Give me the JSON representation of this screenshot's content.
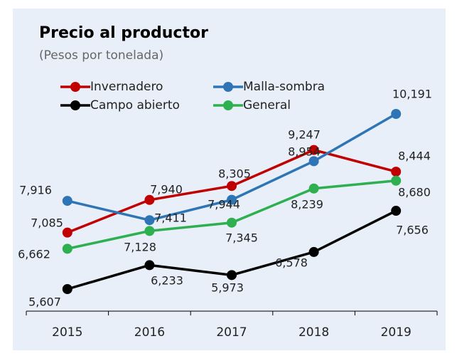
{
  "chart_data": {
    "type": "line",
    "title": "Precio al productor",
    "subtitle": "(Pesos por tonelada)",
    "categories": [
      "2015",
      "2016",
      "2017",
      "2018",
      "2019"
    ],
    "series": [
      {
        "name": "Invernadero",
        "color": "#c00000",
        "values": [
          7085,
          7940,
          8305,
          9247,
          8680
        ],
        "value_labels": [
          "7,085",
          "7,940",
          "8,305",
          "9,247",
          "8,680"
        ]
      },
      {
        "name": "Malla-sombra",
        "color": "#2e75b6",
        "values": [
          7916,
          7411,
          7944,
          8954,
          10191
        ],
        "value_labels": [
          "7,916",
          "7,411",
          "7,944",
          "8,954",
          "10,191"
        ]
      },
      {
        "name": "Campo abierto",
        "color": "#000000",
        "values": [
          5607,
          6233,
          5973,
          6578,
          7656
        ],
        "value_labels": [
          "5,607",
          "6,233",
          "5,973",
          "6,578",
          "7,656"
        ]
      },
      {
        "name": "General",
        "color": "#2eb050",
        "values": [
          6662,
          7128,
          7345,
          8239,
          8444
        ],
        "value_labels": [
          "6,662",
          "7,128",
          "7,345",
          "8,239",
          "8,444"
        ]
      }
    ]
  }
}
